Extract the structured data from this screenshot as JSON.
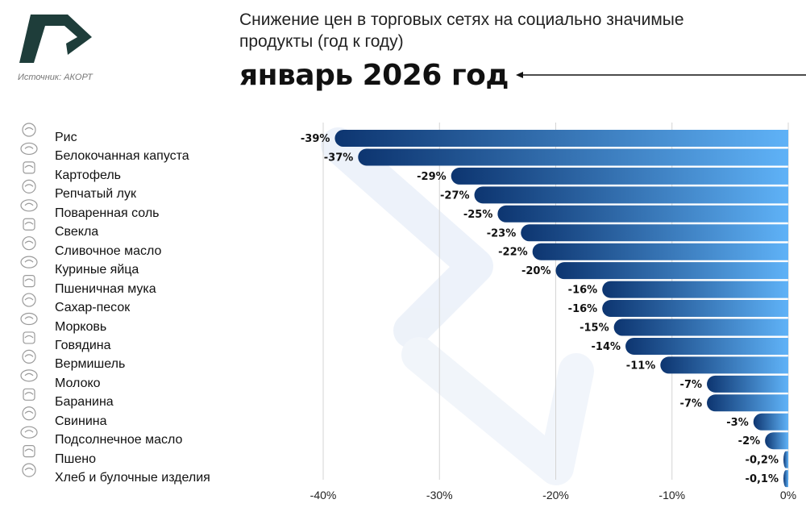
{
  "header": {
    "title_line1": "Снижение цен в торговых сетях на социально значимые",
    "title_line2": "продукты (год к году)",
    "subtitle": "январь 2026 год",
    "source": "Источник: АКОРТ"
  },
  "colors": {
    "logo": "#1e3d3a",
    "bar_dark": "#0d3570",
    "bar_light": "#5fb2f7",
    "gridline": "#d4d4d4",
    "watermark": "#eef3fa"
  },
  "chart_data": {
    "type": "bar",
    "orientation": "horizontal",
    "title": "Снижение цен в торговых сетях на социально значимые продукты (год к году)",
    "subtitle": "январь 2026 год",
    "xlabel": "",
    "ylabel": "",
    "xlim": [
      -40,
      0
    ],
    "grid": true,
    "categories": [
      "Рис",
      "Белокочанная капуста",
      "Картофель",
      "Репчатый лук",
      "Поваренная соль",
      "Свекла",
      "Сливочное масло",
      "Куриные яйца",
      "Пшеничная мука",
      "Сахар-песок",
      "Морковь",
      "Говядина",
      "Вермишель",
      "Молоко",
      "Баранина",
      "Свинина",
      "Подсолнечное масло",
      "Пшено",
      "Хлеб и булочные изделия"
    ],
    "values": [
      -39,
      -37,
      -29,
      -27,
      -25,
      -23,
      -22,
      -20,
      -16,
      -16,
      -15,
      -14,
      -11,
      -7,
      -7,
      -3,
      -2,
      -0.2,
      -0.1
    ],
    "value_labels": [
      "-39%",
      "-37%",
      "-29%",
      "-27%",
      "-25%",
      "-23%",
      "-22%",
      "-20%",
      "-16%",
      "-16%",
      "-15%",
      "-14%",
      "-11%",
      "-7%",
      "-7%",
      "-3%",
      "-2%",
      "-0,2%",
      "-0,1%"
    ],
    "x_ticks": [
      -40,
      -30,
      -20,
      -10,
      0
    ],
    "x_tick_labels": [
      "-40%",
      "-30%",
      "-20%",
      "-10%",
      "0%"
    ]
  },
  "icons": [
    "rice-bowl-icon",
    "cabbage-icon",
    "potato-icon",
    "onion-icon",
    "salt-icon",
    "beet-icon",
    "butter-icon",
    "eggs-icon",
    "flour-sack-icon",
    "sugar-spoon-icon",
    "carrot-icon",
    "beef-steak-icon",
    "noodles-icon",
    "milk-bottle-icon",
    "lamb-icon",
    "pork-icon",
    "oil-bottle-icon",
    "millet-icon",
    "bread-icon"
  ]
}
